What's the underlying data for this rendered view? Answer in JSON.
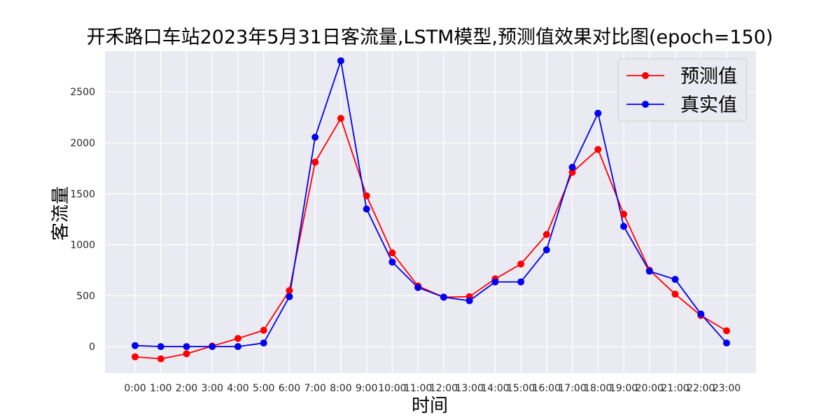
{
  "chart_data": {
    "type": "line",
    "title": "开禾路口车站2023年5月31日客流量,LSTM模型,预测值效果对比图(epoch=150)",
    "xlabel": "时间",
    "ylabel": "客流量",
    "categories": [
      "0:00",
      "1:00",
      "2:00",
      "3:00",
      "4:00",
      "5:00",
      "6:00",
      "7:00",
      "8:00",
      "9:00",
      "10:00",
      "11:00",
      "12:00",
      "13:00",
      "14:00",
      "15:00",
      "16:00",
      "17:00",
      "18:00",
      "19:00",
      "20:00",
      "21:00",
      "22:00",
      "23:00"
    ],
    "y_ticks": [
      0,
      500,
      1000,
      1500,
      2000,
      2500
    ],
    "ylim": [
      -260,
      2900
    ],
    "grid": true,
    "legend_position": "top-right",
    "series": [
      {
        "name": "预测值",
        "color": "#ff0000",
        "values": [
          -100,
          -120,
          -70,
          5,
          80,
          160,
          550,
          1810,
          2240,
          1480,
          920,
          595,
          485,
          490,
          665,
          810,
          1100,
          1710,
          1935,
          1300,
          750,
          515,
          305,
          155
        ]
      },
      {
        "name": "真实值",
        "color": "#0000ee",
        "values": [
          10,
          0,
          0,
          0,
          0,
          35,
          490,
          2055,
          2805,
          1350,
          830,
          580,
          485,
          450,
          635,
          635,
          950,
          1760,
          2290,
          1180,
          740,
          660,
          320,
          35
        ]
      }
    ]
  }
}
